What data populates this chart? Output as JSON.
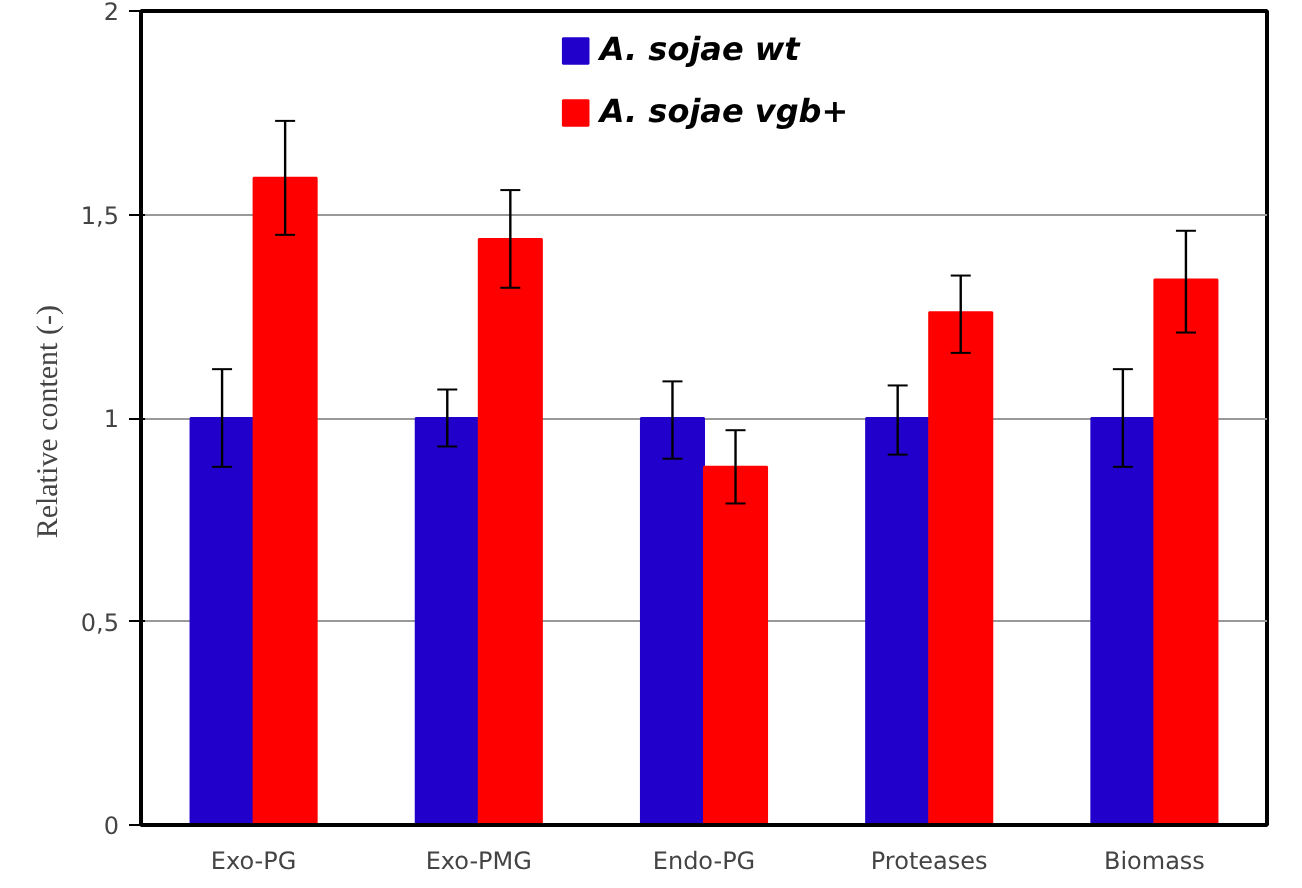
{
  "chart_data": {
    "type": "bar",
    "ylabel": "Relative content  (-)",
    "categories": [
      "Exo-PG",
      "Exo-PMG",
      "Endo-PG",
      "Proteases",
      "Biomass"
    ],
    "series": [
      {
        "name": "A. sojae wt",
        "color": "#2200cc",
        "values": [
          1,
          1,
          1,
          1,
          1
        ],
        "errors": [
          [
            0.88,
            1.12
          ],
          [
            0.93,
            1.07
          ],
          [
            0.9,
            1.09
          ],
          [
            0.91,
            1.08
          ],
          [
            0.88,
            1.12
          ]
        ]
      },
      {
        "name": "A. sojae vgb+",
        "color": "#ff0000",
        "values": [
          1.59,
          1.44,
          0.88,
          1.26,
          1.34
        ],
        "errors": [
          [
            1.45,
            1.73
          ],
          [
            1.32,
            1.56
          ],
          [
            0.79,
            0.97
          ],
          [
            1.16,
            1.35
          ],
          [
            1.21,
            1.46
          ]
        ]
      }
    ],
    "ylim": [
      0,
      2
    ],
    "yticks": [
      0,
      {
        "value": 0.5,
        "label": "0,5"
      },
      1,
      {
        "value": 1.5,
        "label": "1,5"
      },
      2
    ],
    "grid": "y",
    "legend": "top"
  }
}
